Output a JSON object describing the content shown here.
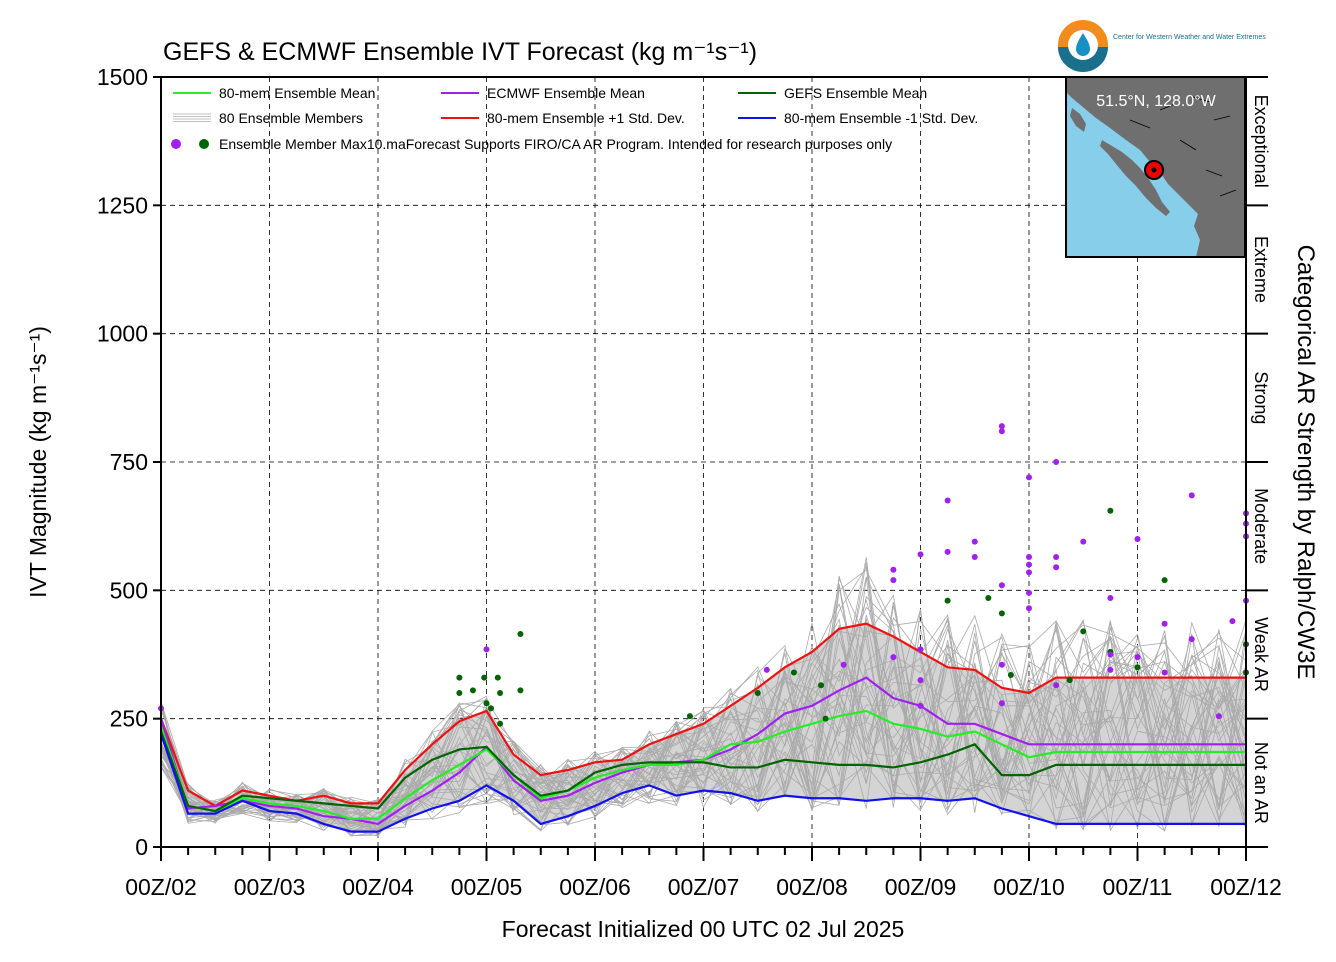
{
  "logo": {
    "text": "Center for Western Weather and Water Extremes",
    "icon": "water-drop-icon"
  },
  "map_inset": {
    "location_label": "51.5°N, 128.0°W",
    "ocean_color": "#87ceeb",
    "land_color": "#6f6f6f"
  },
  "categories_axis": {
    "label": "Categorical AR Strength by Ralph/CW3E",
    "bands": [
      {
        "label": "Not an AR",
        "from": 0,
        "to": 250
      },
      {
        "label": "Weak AR",
        "from": 250,
        "to": 500
      },
      {
        "label": "Moderate",
        "from": 500,
        "to": 750
      },
      {
        "label": "Strong",
        "from": 750,
        "to": 1000
      },
      {
        "label": "Extreme",
        "from": 1000,
        "to": 1250
      },
      {
        "label": "Exceptional",
        "from": 1250,
        "to": 1500
      }
    ]
  },
  "legend": {
    "items": [
      {
        "label": "80-mem Ensemble Mean",
        "color": "#22ee22"
      },
      {
        "label": "ECMWF Ensemble Mean",
        "color": "#a020f0"
      },
      {
        "label": "GEFS Ensemble Mean",
        "color": "#006400"
      },
      {
        "label": "80 Ensemble Members",
        "color": "#aaaaaa"
      },
      {
        "label": "80-mem Ensemble +1 Std. Dev.",
        "color": "#ee1111"
      },
      {
        "label": "80-mem Ensemble -1 Std. Dev.",
        "color": "#1111ee"
      }
    ],
    "max_label": "Ensemble Member Max",
    "disclaimer": "10.maForecast Supports FIRO/CA AR Program. Intended for research purposes only"
  },
  "chart_data": {
    "type": "line",
    "title": "GEFS & ECMWF Ensemble IVT Forecast (kg m⁻¹s⁻¹)",
    "xlabel": "Forecast Initialized 00 UTC 02 Jul 2025",
    "ylabel": "IVT Magnitude (kg m⁻¹s⁻¹)",
    "ylim": [
      0,
      1500
    ],
    "xlim": [
      0,
      240
    ],
    "x_unit": "forecast hour",
    "xticks": [
      "00Z/02",
      "00Z/03",
      "00Z/04",
      "00Z/05",
      "00Z/06",
      "00Z/07",
      "00Z/08",
      "00Z/09",
      "00Z/10",
      "00Z/11",
      "00Z/12"
    ],
    "yticks": [
      0,
      250,
      500,
      750,
      1000,
      1250,
      1500
    ],
    "grid": true,
    "legend_position": "top-left",
    "series": [
      {
        "name": "80-mem Ensemble +1 Std. Dev.",
        "color": "#ee1111",
        "x": [
          0,
          6,
          12,
          18,
          24,
          30,
          36,
          42,
          48,
          54,
          60,
          66,
          72,
          78,
          84,
          90,
          96,
          102,
          108,
          114,
          120,
          126,
          132,
          138,
          144,
          150,
          156,
          162,
          168,
          174,
          180,
          186,
          192,
          198,
          204,
          210,
          216,
          222,
          228,
          234,
          240
        ],
        "values": [
          250,
          110,
          80,
          110,
          100,
          90,
          100,
          85,
          85,
          150,
          200,
          245,
          265,
          180,
          140,
          150,
          165,
          170,
          200,
          220,
          240,
          275,
          310,
          350,
          380,
          425,
          435,
          410,
          380,
          350,
          345,
          310,
          300,
          330,
          330,
          330,
          330,
          330,
          330,
          330,
          330
        ]
      },
      {
        "name": "ECMWF Ensemble Mean",
        "color": "#a020f0",
        "x": [
          0,
          6,
          12,
          18,
          24,
          30,
          36,
          42,
          48,
          54,
          60,
          66,
          72,
          78,
          84,
          90,
          96,
          102,
          108,
          114,
          120,
          126,
          132,
          138,
          144,
          150,
          156,
          162,
          168,
          174,
          180,
          186,
          192,
          198,
          204,
          210,
          216,
          222,
          228,
          234,
          240
        ],
        "values": [
          250,
          75,
          80,
          90,
          80,
          75,
          60,
          55,
          45,
          80,
          110,
          145,
          195,
          130,
          90,
          100,
          125,
          145,
          160,
          165,
          170,
          190,
          220,
          260,
          275,
          305,
          330,
          290,
          275,
          240,
          240,
          220,
          200,
          200,
          200,
          200,
          200,
          200,
          200,
          200,
          200
        ]
      },
      {
        "name": "80-mem Ensemble Mean",
        "color": "#22ee22",
        "x": [
          0,
          6,
          12,
          18,
          24,
          30,
          36,
          42,
          48,
          54,
          60,
          66,
          72,
          78,
          84,
          90,
          96,
          102,
          108,
          114,
          120,
          126,
          132,
          138,
          144,
          150,
          156,
          162,
          168,
          174,
          180,
          186,
          192,
          198,
          204,
          210,
          216,
          222,
          228,
          234,
          240
        ],
        "values": [
          235,
          80,
          70,
          95,
          85,
          80,
          70,
          55,
          55,
          95,
          130,
          160,
          190,
          140,
          95,
          110,
          135,
          150,
          160,
          160,
          170,
          200,
          205,
          225,
          240,
          255,
          265,
          240,
          230,
          215,
          225,
          200,
          175,
          185,
          185,
          185,
          185,
          185,
          185,
          185,
          185
        ]
      },
      {
        "name": "GEFS Ensemble Mean",
        "color": "#006400",
        "x": [
          0,
          6,
          12,
          18,
          24,
          30,
          36,
          42,
          48,
          54,
          60,
          66,
          72,
          78,
          84,
          90,
          96,
          102,
          108,
          114,
          120,
          126,
          132,
          138,
          144,
          150,
          156,
          162,
          168,
          174,
          180,
          186,
          192,
          198,
          204,
          210,
          216,
          222,
          228,
          234,
          240
        ],
        "values": [
          225,
          80,
          70,
          100,
          95,
          90,
          85,
          80,
          75,
          135,
          170,
          190,
          195,
          140,
          100,
          110,
          145,
          160,
          165,
          165,
          165,
          155,
          155,
          170,
          165,
          160,
          160,
          155,
          165,
          180,
          200,
          140,
          140,
          160,
          160,
          160,
          160,
          160,
          160,
          160,
          160
        ]
      },
      {
        "name": "80-mem Ensemble -1 Std. Dev.",
        "color": "#1111ee",
        "x": [
          0,
          6,
          12,
          18,
          24,
          30,
          36,
          42,
          48,
          54,
          60,
          66,
          72,
          78,
          84,
          90,
          96,
          102,
          108,
          114,
          120,
          126,
          132,
          138,
          144,
          150,
          156,
          162,
          168,
          174,
          180,
          186,
          192,
          198,
          204,
          210,
          216,
          222,
          228,
          234,
          240
        ],
        "values": [
          220,
          65,
          65,
          90,
          70,
          65,
          45,
          30,
          30,
          55,
          75,
          90,
          120,
          90,
          45,
          60,
          80,
          105,
          120,
          100,
          110,
          105,
          90,
          100,
          95,
          95,
          90,
          95,
          95,
          90,
          95,
          75,
          60,
          45,
          45,
          45,
          45,
          45,
          45,
          45,
          45
        ]
      }
    ],
    "member_max_points": [
      {
        "model": "ECMWF",
        "x": 0,
        "value": 270
      },
      {
        "model": "ECMWF",
        "x": 72,
        "value": 385
      },
      {
        "model": "GEFS",
        "x": 79.5,
        "value": 415
      },
      {
        "model": "GEFS",
        "x": 71.5,
        "value": 330
      },
      {
        "model": "GEFS",
        "x": 79.5,
        "value": 305
      },
      {
        "model": "GEFS",
        "x": 69,
        "value": 305
      },
      {
        "model": "GEFS",
        "x": 74.5,
        "value": 330
      },
      {
        "model": "GEFS",
        "x": 66,
        "value": 330
      },
      {
        "model": "GEFS",
        "x": 66,
        "value": 300
      },
      {
        "model": "GEFS",
        "x": 72,
        "value": 280
      },
      {
        "model": "GEFS",
        "x": 73,
        "value": 270
      },
      {
        "model": "GEFS",
        "x": 75,
        "value": 300
      },
      {
        "model": "GEFS",
        "x": 75,
        "value": 240
      },
      {
        "model": "GEFS",
        "x": 117,
        "value": 255
      },
      {
        "model": "ECMWF",
        "x": 134,
        "value": 345
      },
      {
        "model": "GEFS",
        "x": 132,
        "value": 300
      },
      {
        "model": "GEFS",
        "x": 140,
        "value": 340
      },
      {
        "model": "GEFS",
        "x": 146,
        "value": 315
      },
      {
        "model": "GEFS",
        "x": 147,
        "value": 250
      },
      {
        "model": "ECMWF",
        "x": 151,
        "value": 355
      },
      {
        "model": "ECMWF",
        "x": 162,
        "value": 540
      },
      {
        "model": "ECMWF",
        "x": 162,
        "value": 520
      },
      {
        "model": "ECMWF",
        "x": 162,
        "value": 370
      },
      {
        "model": "ECMWF",
        "x": 168,
        "value": 570
      },
      {
        "model": "ECMWF",
        "x": 168,
        "value": 385
      },
      {
        "model": "ECMWF",
        "x": 168,
        "value": 325
      },
      {
        "model": "ECMWF",
        "x": 168,
        "value": 275
      },
      {
        "model": "ECMWF",
        "x": 174,
        "value": 575
      },
      {
        "model": "ECMWF",
        "x": 174,
        "value": 675
      },
      {
        "model": "GEFS",
        "x": 174,
        "value": 480
      },
      {
        "model": "ECMWF",
        "x": 180,
        "value": 595
      },
      {
        "model": "ECMWF",
        "x": 180,
        "value": 565
      },
      {
        "model": "GEFS",
        "x": 183,
        "value": 485
      },
      {
        "model": "ECMWF",
        "x": 186,
        "value": 820
      },
      {
        "model": "ECMWF",
        "x": 186,
        "value": 810
      },
      {
        "model": "ECMWF",
        "x": 186,
        "value": 510
      },
      {
        "model": "GEFS",
        "x": 186,
        "value": 455
      },
      {
        "model": "ECMWF",
        "x": 186,
        "value": 355
      },
      {
        "model": "GEFS",
        "x": 188,
        "value": 335
      },
      {
        "model": "ECMWF",
        "x": 186,
        "value": 280
      },
      {
        "model": "ECMWF",
        "x": 192,
        "value": 720
      },
      {
        "model": "ECMWF",
        "x": 192,
        "value": 565
      },
      {
        "model": "ECMWF",
        "x": 192,
        "value": 550
      },
      {
        "model": "ECMWF",
        "x": 192,
        "value": 535
      },
      {
        "model": "ECMWF",
        "x": 192,
        "value": 495
      },
      {
        "model": "ECMWF",
        "x": 192,
        "value": 465
      },
      {
        "model": "ECMWF",
        "x": 198,
        "value": 750
      },
      {
        "model": "ECMWF",
        "x": 198,
        "value": 565
      },
      {
        "model": "ECMWF",
        "x": 198,
        "value": 545
      },
      {
        "model": "ECMWF",
        "x": 198,
        "value": 315
      },
      {
        "model": "GEFS",
        "x": 201,
        "value": 325
      },
      {
        "model": "ECMWF",
        "x": 204,
        "value": 595
      },
      {
        "model": "GEFS",
        "x": 204,
        "value": 420
      },
      {
        "model": "GEFS",
        "x": 210,
        "value": 655
      },
      {
        "model": "ECMWF",
        "x": 210,
        "value": 485
      },
      {
        "model": "GEFS",
        "x": 210,
        "value": 380
      },
      {
        "model": "ECMWF",
        "x": 210,
        "value": 375
      },
      {
        "model": "ECMWF",
        "x": 210,
        "value": 345
      },
      {
        "model": "ECMWF",
        "x": 216,
        "value": 600
      },
      {
        "model": "ECMWF",
        "x": 216,
        "value": 370
      },
      {
        "model": "GEFS",
        "x": 216,
        "value": 350
      },
      {
        "model": "GEFS",
        "x": 222,
        "value": 520
      },
      {
        "model": "ECMWF",
        "x": 222,
        "value": 435
      },
      {
        "model": "ECMWF",
        "x": 228,
        "value": 685
      },
      {
        "model": "ECMWF",
        "x": 228,
        "value": 405
      },
      {
        "model": "ECMWF",
        "x": 222,
        "value": 340
      },
      {
        "model": "ECMWF",
        "x": 234,
        "value": 255
      },
      {
        "model": "ECMWF",
        "x": 237,
        "value": 440
      },
      {
        "model": "ECMWF",
        "x": 240,
        "value": 650
      },
      {
        "model": "ECMWF",
        "x": 240,
        "value": 630
      },
      {
        "model": "ECMWF",
        "x": 240,
        "value": 605
      },
      {
        "model": "ECMWF",
        "x": 240,
        "value": 480
      },
      {
        "model": "GEFS",
        "x": 240,
        "value": 395
      },
      {
        "model": "GEFS",
        "x": 240,
        "value": 340
      }
    ]
  }
}
